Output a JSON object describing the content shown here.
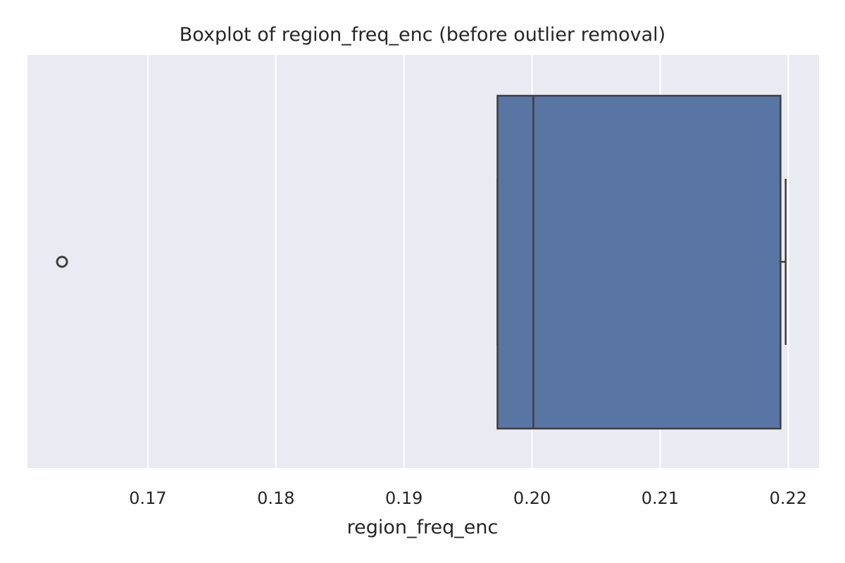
{
  "chart_data": {
    "type": "boxplot",
    "title": "Boxplot of region_freq_enc (before outlier removal)",
    "xlabel": "region_freq_enc",
    "ylabel": "",
    "orientation": "horizontal",
    "xlim": [
      0.1606,
      0.2224
    ],
    "xticks": [
      0.17,
      0.18,
      0.19,
      0.2,
      0.21,
      0.22
    ],
    "xtick_labels": [
      "0.17",
      "0.18",
      "0.19",
      "0.20",
      "0.21",
      "0.22"
    ],
    "grid": true,
    "box": {
      "whisker_low": 0.1973,
      "q1": 0.1973,
      "median": 0.2001,
      "q3": 0.2194,
      "whisker_high": 0.2198
    },
    "outliers": [
      0.1633
    ]
  },
  "colors": {
    "plot_background": "#eaeaf2",
    "grid": "#ffffff",
    "box_fill": "#5975a4",
    "line": "#3f3f3f",
    "text": "#262626"
  }
}
